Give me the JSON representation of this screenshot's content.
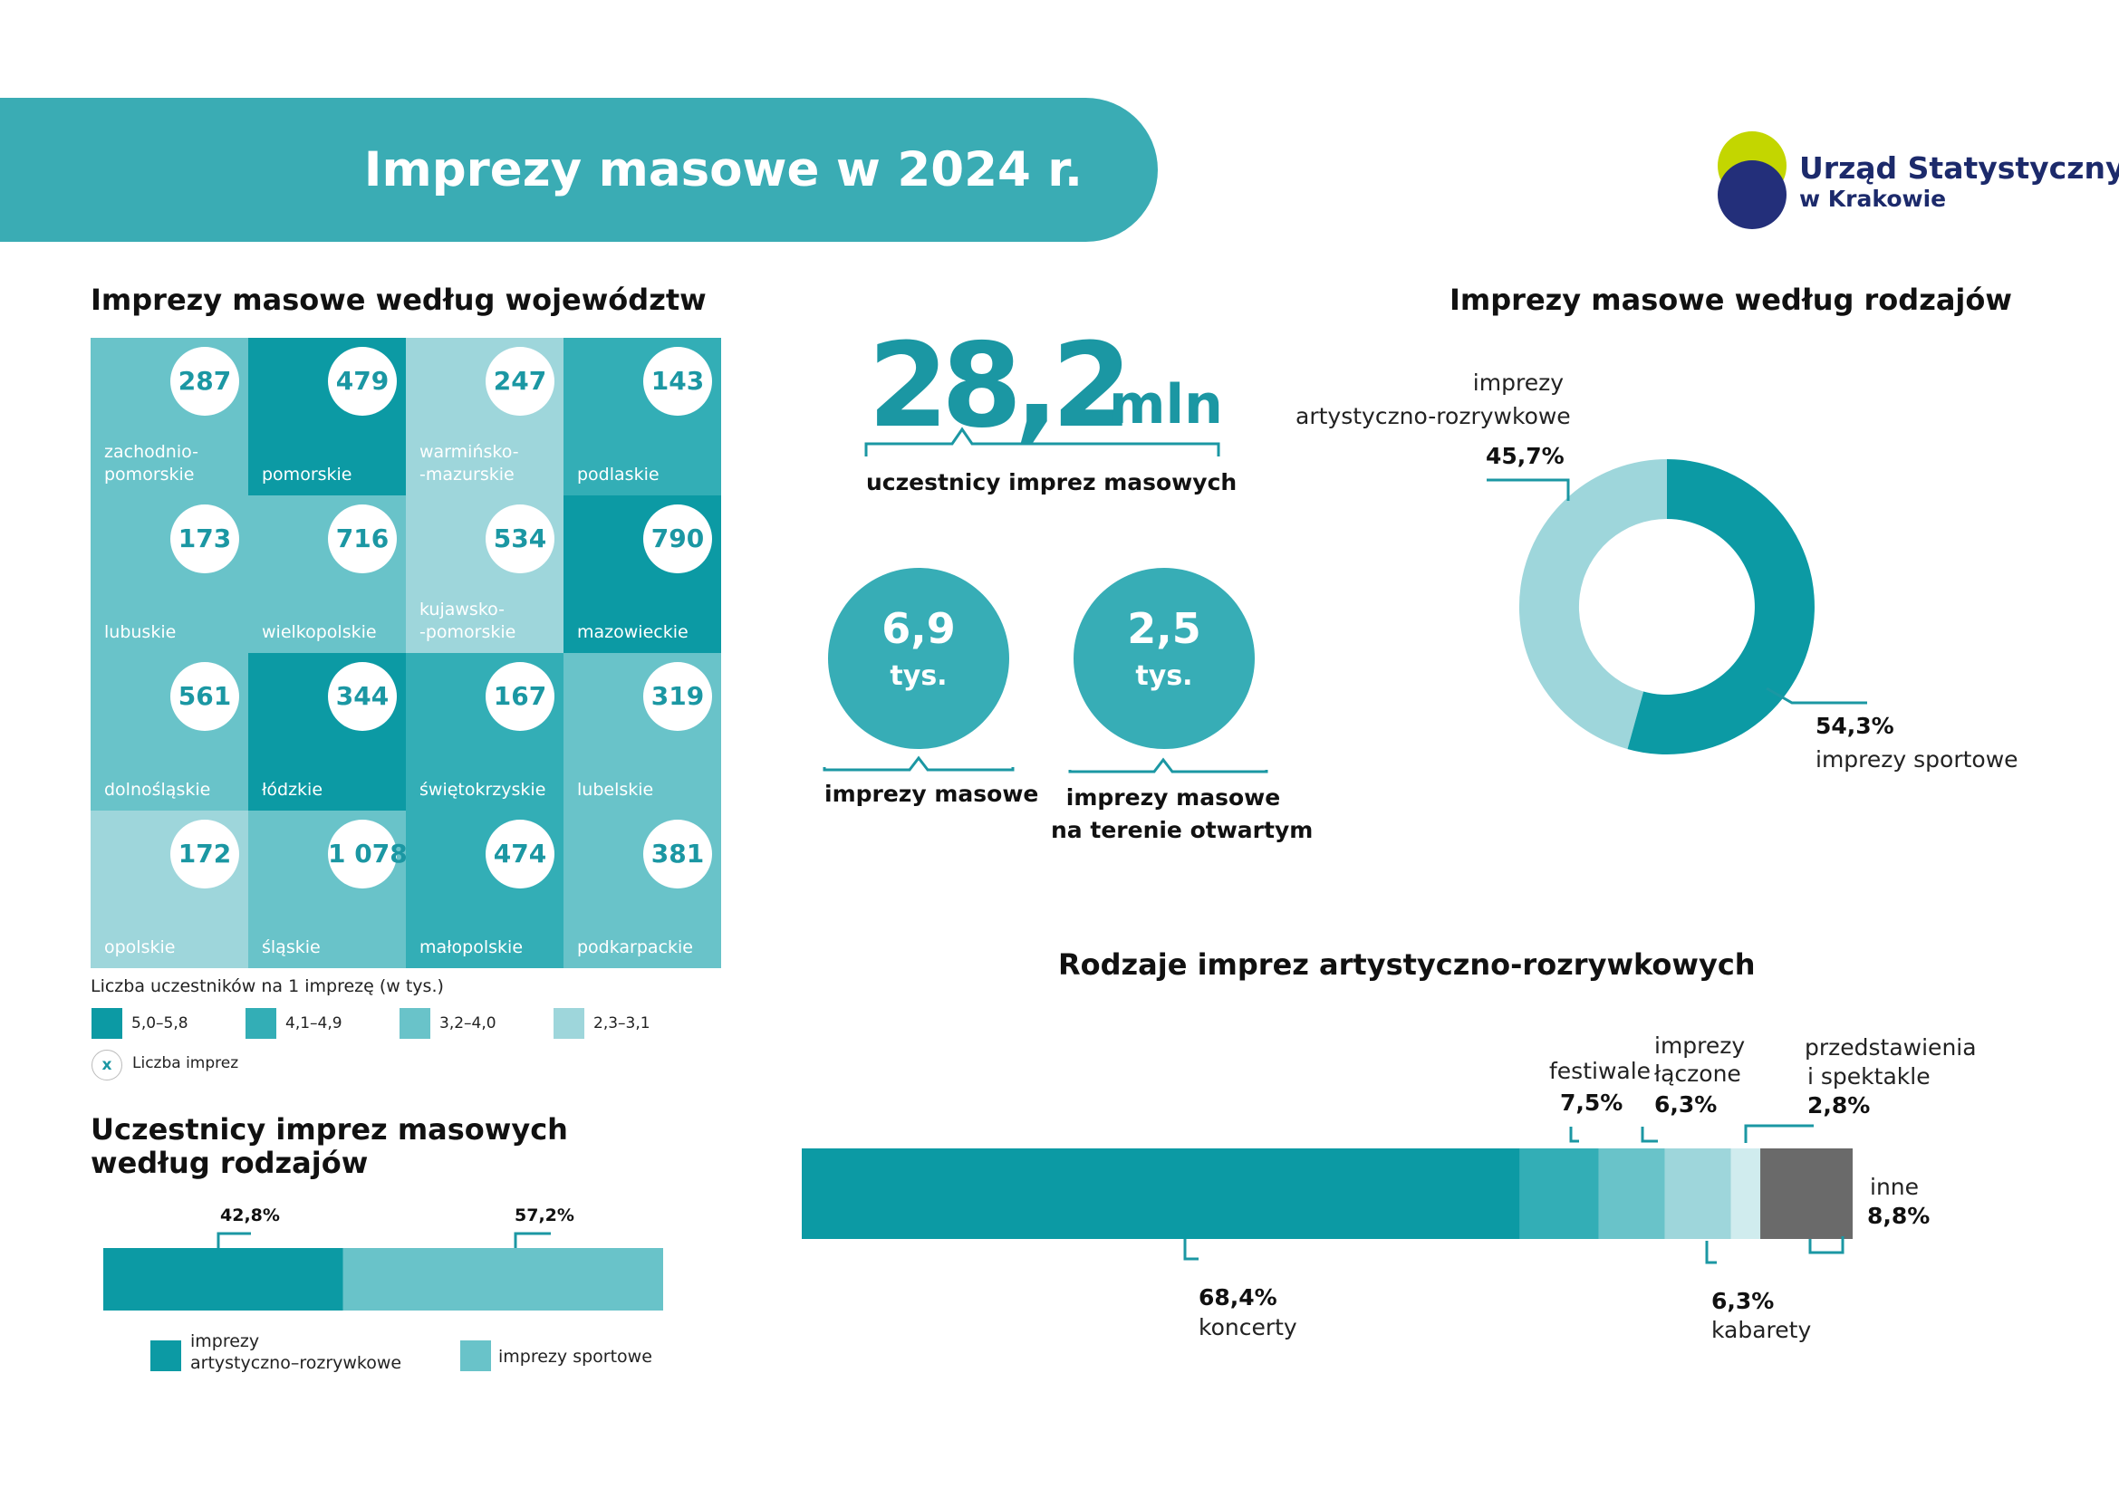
{
  "header": {
    "title": "Imprezy masowe w 2024 r."
  },
  "logo": {
    "line1": "Urząd Statystyczny",
    "line2": "w Krakowie"
  },
  "colors": {
    "dark": "#0c9aa4",
    "mid": "#33aeb6",
    "light": "#69c3c9",
    "lighter": "#9ed6db",
    "palest": "#d0ecee",
    "grey": "#6a6a6a"
  },
  "voivodeships": {
    "title": "Imprezy masowe według województw",
    "cells": [
      {
        "name": "zachodnio-\npomorskie",
        "value": "287",
        "level": 3
      },
      {
        "name": "pomorskie",
        "value": "479",
        "level": 1
      },
      {
        "name": "warmińsko-\n-mazurskie",
        "value": "247",
        "level": 4
      },
      {
        "name": "podlaskie",
        "value": "143",
        "level": 2
      },
      {
        "name": "lubuskie",
        "value": "173",
        "level": 3
      },
      {
        "name": "wielkopolskie",
        "value": "716",
        "level": 3
      },
      {
        "name": "kujawsko-\n-pomorskie",
        "value": "534",
        "level": 4
      },
      {
        "name": "mazowieckie",
        "value": "790",
        "level": 1
      },
      {
        "name": "dolnośląskie",
        "value": "561",
        "level": 3
      },
      {
        "name": "łódzkie",
        "value": "344",
        "level": 1
      },
      {
        "name": "świętokrzyskie",
        "value": "167",
        "level": 2
      },
      {
        "name": "lubelskie",
        "value": "319",
        "level": 3
      },
      {
        "name": "opolskie",
        "value": "172",
        "level": 4
      },
      {
        "name": "śląskie",
        "value": "1 078",
        "level": 3
      },
      {
        "name": "małopolskie",
        "value": "474",
        "level": 2
      },
      {
        "name": "podkarpackie",
        "value": "381",
        "level": 3
      }
    ],
    "legend_title": "Liczba uczestników na 1 imprezę (w tys.)",
    "legend": [
      "5,0–5,8",
      "4,1–4,9",
      "3,2–4,0",
      "2,3–3,1"
    ],
    "count_marker": "x",
    "count_label": "Liczba imprez"
  },
  "participants": {
    "value": "28,2",
    "unit": "mln",
    "label": "uczestnicy imprez masowych"
  },
  "events": {
    "value": "6,9",
    "unit": "tys.",
    "label": "imprezy masowe"
  },
  "open_events": {
    "value": "2,5",
    "unit": "tys.",
    "label_line1": "imprezy masowe",
    "label_line2": "na terenie otwartym"
  },
  "by_type": {
    "title": "Imprezy masowe według rodzajów",
    "artistic_label_line1": "imprezy",
    "artistic_label_line2": "artystyczno-rozrywkowe",
    "artistic_pct": "45,7%",
    "sport_pct": "54,3%",
    "sport_label": "imprezy sportowe"
  },
  "participants_by_type": {
    "title_line1": "Uczestnicy  imprez masowych",
    "title_line2": "według rodzajów",
    "artistic_pct": "42,8%",
    "sport_pct": "57,2%",
    "legend_artistic_line1": "imprezy",
    "legend_artistic_line2": "artystyczno–rozrywkowe",
    "legend_sport": "imprezy sportowe"
  },
  "artistic_kinds": {
    "title": "Rodzaje imprez artystyczno-rozrywkowych",
    "koncerty_pct": "68,4%",
    "koncerty": "koncerty",
    "festiwale": "festiwale",
    "festiwale_pct": "7,5%",
    "laczone_line1": "imprezy",
    "laczone_line2": "łączone",
    "laczone_pct": "6,3%",
    "kabarety_pct": "6,3%",
    "kabarety": "kabarety",
    "przedst_line1": "przedstawienia",
    "przedst_line2": "i spektakle",
    "przedst_pct": "2,8%",
    "inne": "inne",
    "inne_pct": "8,8%"
  },
  "chart_data": [
    {
      "type": "pie",
      "title": "Imprezy masowe według rodzajów",
      "labels": [
        "imprezy sportowe",
        "imprezy artystyczno-rozrywkowe"
      ],
      "values": [
        54.3,
        45.7
      ]
    },
    {
      "type": "bar",
      "title": "Uczestnicy imprez masowych według rodzajów",
      "categories": [
        "imprezy artystyczno–rozrywkowe",
        "imprezy sportowe"
      ],
      "values": [
        42.8,
        57.2
      ],
      "stacked": true
    },
    {
      "type": "bar",
      "title": "Rodzaje imprez artystyczno-rozrywkowych",
      "categories": [
        "koncerty",
        "festiwale",
        "imprezy łączone",
        "kabarety",
        "przedstawienia i spektakle",
        "inne"
      ],
      "values": [
        68.4,
        7.5,
        6.3,
        6.3,
        2.8,
        8.8
      ],
      "stacked": true
    }
  ]
}
